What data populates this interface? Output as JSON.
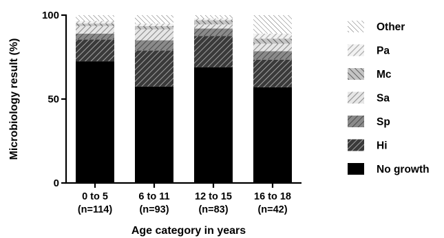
{
  "chart_data": {
    "type": "bar",
    "stacked": true,
    "ylabel": "Microbiology result (%)",
    "xlabel": "Age category in years",
    "ylim": [
      0,
      100
    ],
    "yticks": [
      0,
      50,
      100
    ],
    "categories": [
      {
        "line1": "0 to 5",
        "line2": "(n=114)"
      },
      {
        "line1": "6 to 11",
        "line2": "(n=93)"
      },
      {
        "line1": "12 to 15",
        "line2": "(n=83)"
      },
      {
        "line1": "16 to 18",
        "line2": "(n=42)"
      }
    ],
    "series": [
      {
        "name": "No growth",
        "values": [
          72.5,
          57.5,
          69,
          57
        ],
        "pattern": "solid"
      },
      {
        "name": "Hi",
        "values": [
          13,
          21.5,
          18.5,
          16.5
        ],
        "pattern": "hatch-dense"
      },
      {
        "name": "Sp",
        "values": [
          3.5,
          6,
          4.5,
          5
        ],
        "pattern": "hatch-gray-dark"
      },
      {
        "name": "Sa",
        "values": [
          4.5,
          6.5,
          2.5,
          4.5
        ],
        "pattern": "hatch-light"
      },
      {
        "name": "Mc",
        "values": [
          1.5,
          2,
          2.5,
          3
        ],
        "pattern": "hatch-gray-medium"
      },
      {
        "name": "Pa",
        "values": [
          1.5,
          1.5,
          1,
          3
        ],
        "pattern": "hatch-white-gray"
      },
      {
        "name": "Other",
        "values": [
          3.5,
          5,
          2,
          11
        ],
        "pattern": "hatch-sparse"
      }
    ],
    "legend": {
      "placement": "right",
      "order": [
        "Other",
        "Pa",
        "Mc",
        "Sa",
        "Sp",
        "Hi",
        "No growth"
      ]
    },
    "grid": false
  }
}
